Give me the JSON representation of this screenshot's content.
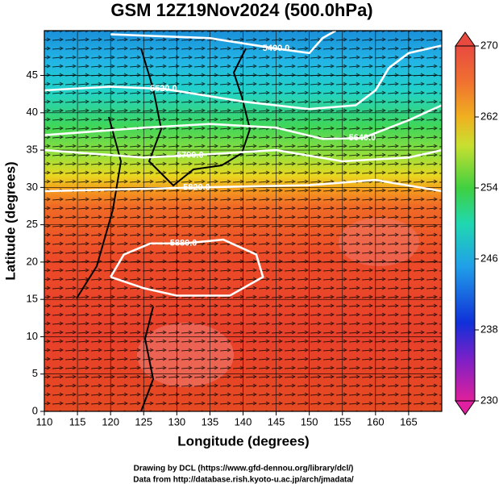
{
  "chart_data": {
    "type": "map",
    "title": "GSM 12Z19Nov2024 (500.0hPa)",
    "x_label": "Longitude (degrees)",
    "y_label": "Latitude  (degrees)",
    "xlim": [
      110,
      170
    ],
    "ylim": [
      0,
      51
    ],
    "xticks": [
      110,
      115,
      120,
      125,
      130,
      135,
      140,
      145,
      150,
      155,
      160,
      165
    ],
    "yticks": [
      0,
      5,
      10,
      15,
      20,
      25,
      30,
      35,
      40,
      45
    ],
    "grid": true,
    "colorbar": {
      "lim": [
        230,
        270
      ],
      "ticks": [
        230,
        238,
        246,
        254,
        262,
        270
      ]
    },
    "contours": [
      {
        "value": 5400,
        "label": "5400.0"
      },
      {
        "value": 5520,
        "label": "5520.0"
      },
      {
        "value": 5640,
        "label": "5640.0"
      },
      {
        "value": 5700,
        "label": "5700.0"
      },
      {
        "value": 5820,
        "label": "5820.0"
      },
      {
        "value": 5880,
        "label": "5880.0"
      }
    ],
    "footer": [
      "Drawing by DCL (https://www.gfd-dennou.org/library/dcl/)",
      "Data from http://database.rish.kyoto-u.ac.jp/arch/jmadata/"
    ]
  }
}
